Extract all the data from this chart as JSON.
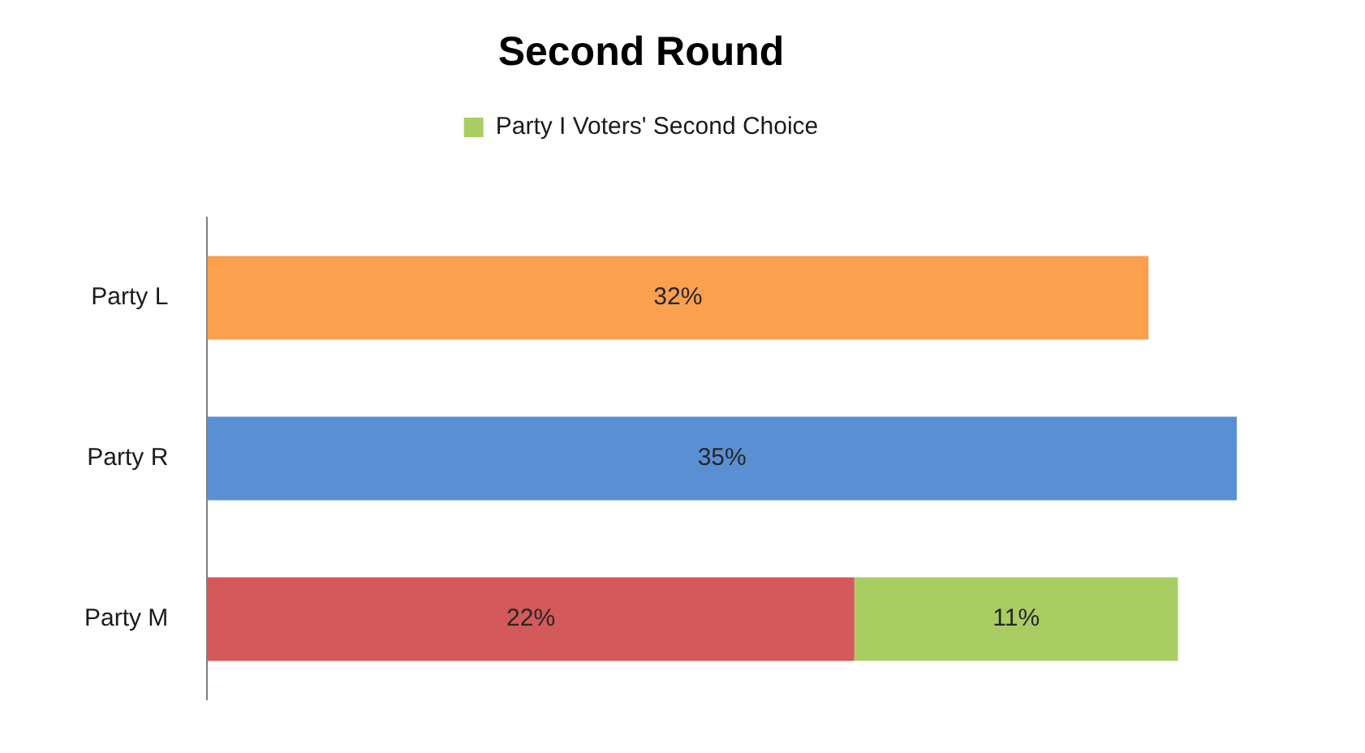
{
  "chart_data": {
    "type": "bar",
    "title": "Second Round",
    "orientation": "horizontal",
    "stacked": true,
    "categories": [
      "Party L",
      "Party R",
      "Party M"
    ],
    "series": [
      {
        "colors": [
          "#faa04f",
          "#5b8fd4",
          "#d4595a"
        ],
        "values": [
          32,
          35,
          22
        ],
        "value_labels": [
          "32%",
          "35%",
          "22%"
        ]
      },
      {
        "name": "Party I Voters' Second Choice",
        "color": "#a9cd63",
        "values": [
          null,
          null,
          11
        ],
        "value_labels": [
          null,
          null,
          "11%"
        ]
      }
    ],
    "legend": "top",
    "tick_labels": "y"
  }
}
